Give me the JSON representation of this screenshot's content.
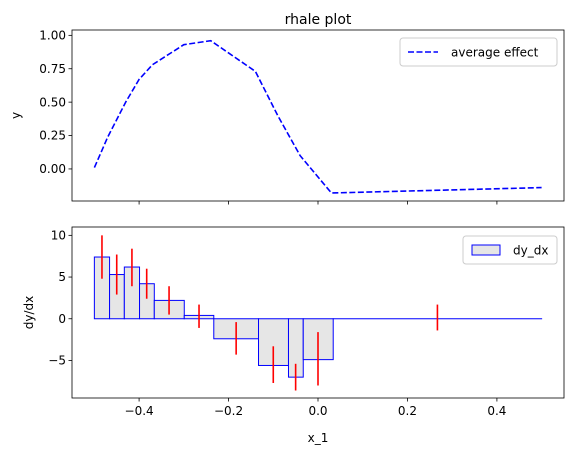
{
  "chart_data": [
    {
      "type": "line",
      "title": "rhale plot",
      "xlabel": "",
      "ylabel": "y",
      "xlim": [
        -0.55,
        0.55
      ],
      "ylim": [
        -0.24,
        1.04
      ],
      "xticks": [
        -0.4,
        -0.2,
        0.0,
        0.2,
        0.4
      ],
      "yticks": [
        0.0,
        0.25,
        0.5,
        0.75,
        1.0
      ],
      "ytick_labels": [
        "0.00",
        "0.25",
        "0.50",
        "0.75",
        "1.00"
      ],
      "grid": false,
      "legend": "top-right",
      "series": [
        {
          "name": "average effect",
          "color": "#0000ff",
          "style": "dashed",
          "x": [
            -0.5,
            -0.47,
            -0.43,
            -0.4,
            -0.37,
            -0.3,
            -0.24,
            -0.14,
            -0.09,
            -0.04,
            0.03,
            0.5
          ],
          "y": [
            0.01,
            0.24,
            0.5,
            0.67,
            0.78,
            0.93,
            0.96,
            0.73,
            0.4,
            0.1,
            -0.18,
            -0.14
          ]
        }
      ]
    },
    {
      "type": "bar",
      "title": "",
      "xlabel": "x_1",
      "ylabel": "dy/dx",
      "xlim": [
        -0.55,
        0.55
      ],
      "ylim": [
        -9.5,
        11.0
      ],
      "xticks": [
        -0.4,
        -0.2,
        0.0,
        0.2,
        0.4
      ],
      "xtick_labels": [
        "−0.4",
        "−0.2",
        "0.0",
        "0.2",
        "0.4"
      ],
      "yticks": [
        -5,
        0,
        5,
        10
      ],
      "ytick_labels": [
        "−5",
        "0",
        "5",
        "10"
      ],
      "grid": false,
      "legend": "top-right",
      "series": [
        {
          "name": "dy_dx",
          "edge_color": "#0000ff",
          "fill_color": "#e6e6e6",
          "bins": [
            {
              "x0": -0.5,
              "x1": -0.466,
              "value": 7.4
            },
            {
              "x0": -0.466,
              "x1": -0.433,
              "value": 5.3
            },
            {
              "x0": -0.433,
              "x1": -0.399,
              "value": 6.2
            },
            {
              "x0": -0.399,
              "x1": -0.366,
              "value": 4.2
            },
            {
              "x0": -0.366,
              "x1": -0.299,
              "value": 2.2
            },
            {
              "x0": -0.299,
              "x1": -0.233,
              "value": 0.4
            },
            {
              "x0": -0.233,
              "x1": -0.133,
              "value": -2.4
            },
            {
              "x0": -0.133,
              "x1": -0.066,
              "value": -5.6
            },
            {
              "x0": -0.066,
              "x1": -0.033,
              "value": -7.0
            },
            {
              "x0": -0.033,
              "x1": 0.034,
              "value": -4.9
            },
            {
              "x0": 0.034,
              "x1": 0.5,
              "value": 0.0
            }
          ]
        }
      ],
      "error_bars": {
        "color": "#ff0000",
        "bars": [
          {
            "x": -0.483,
            "low": 4.8,
            "high": 10.0
          },
          {
            "x": -0.45,
            "low": 2.9,
            "high": 7.7
          },
          {
            "x": -0.416,
            "low": 3.9,
            "high": 8.4
          },
          {
            "x": -0.383,
            "low": 2.4,
            "high": 6.0
          },
          {
            "x": -0.333,
            "low": 0.5,
            "high": 3.9
          },
          {
            "x": -0.266,
            "low": -1.1,
            "high": 1.7
          },
          {
            "x": -0.183,
            "low": -4.3,
            "high": -0.4
          },
          {
            "x": -0.1,
            "low": -7.7,
            "high": -3.3
          },
          {
            "x": -0.05,
            "low": -8.6,
            "high": -5.4
          },
          {
            "x": 0.0,
            "low": -8.0,
            "high": -1.6
          },
          {
            "x": 0.267,
            "low": -1.4,
            "high": 1.7
          }
        ]
      }
    }
  ]
}
